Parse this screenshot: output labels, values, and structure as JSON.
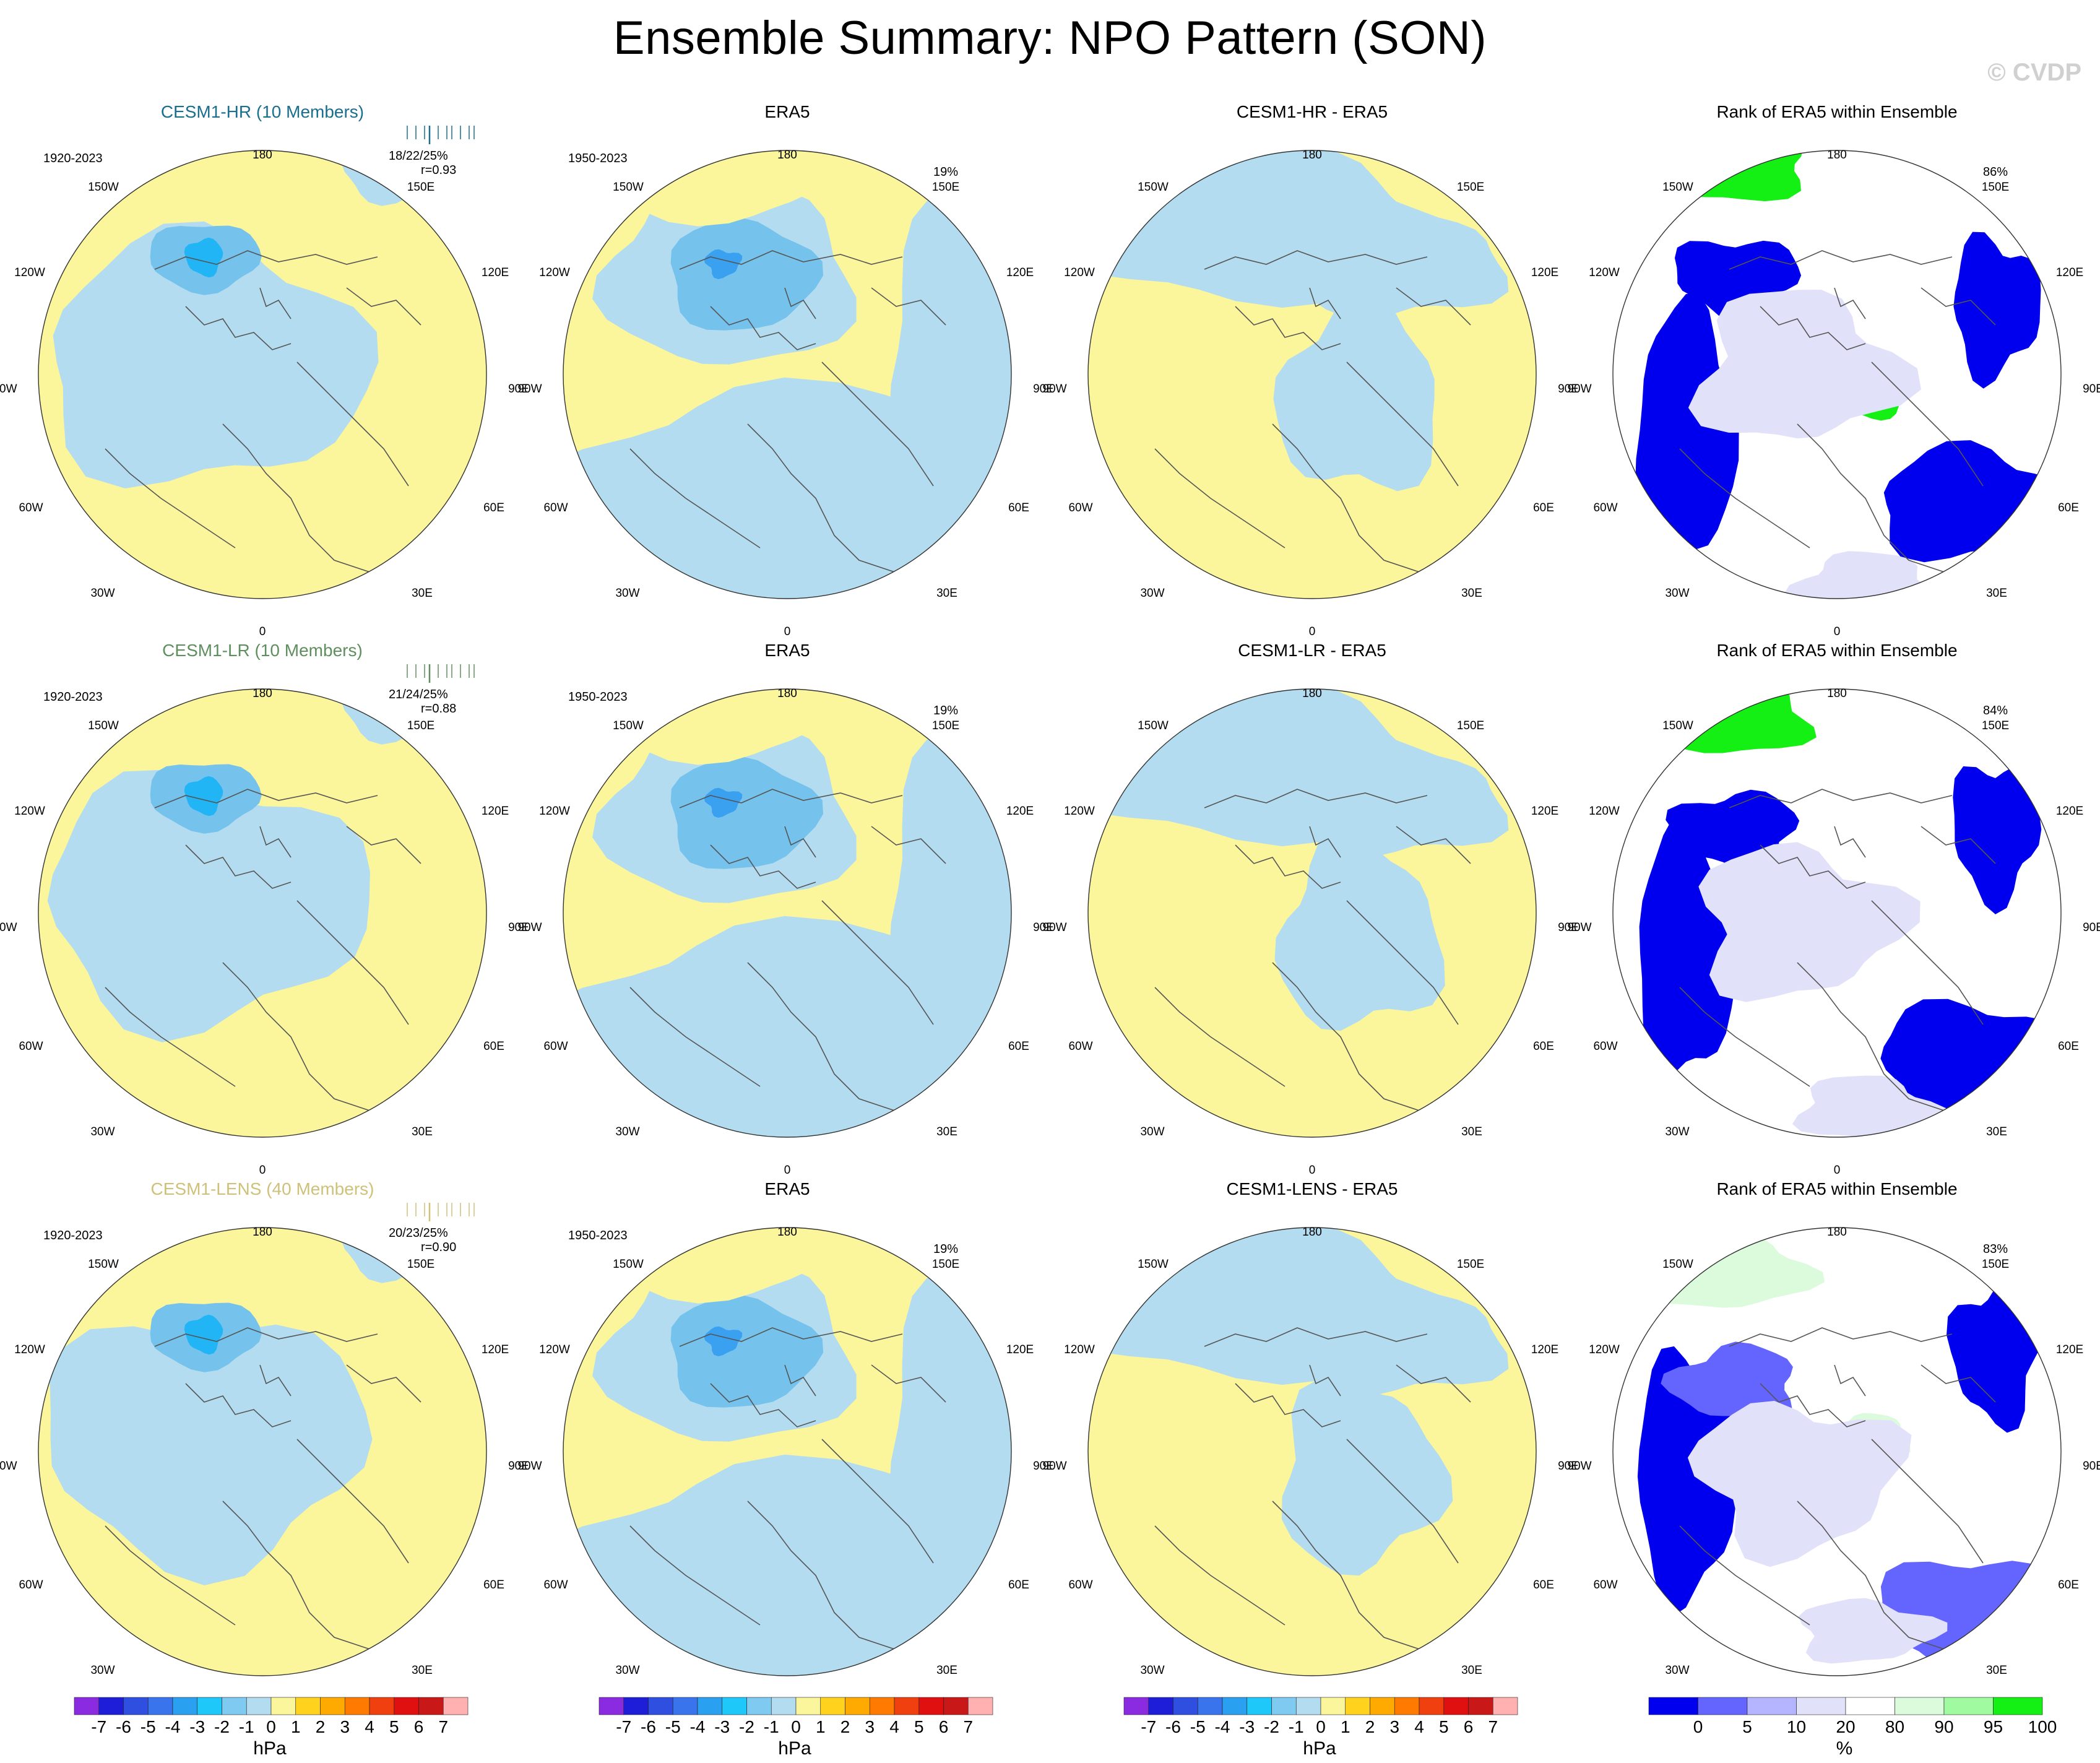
{
  "title": "Ensemble Summary: NPO Pattern (SON)",
  "watermark": "© CVDP",
  "colors": {
    "pos1": "#fbf59b",
    "neg1": "#b3dcf0",
    "neg2": "#75c2ec",
    "neg3": "#22b5f5",
    "neg4": "#3aa0f0",
    "land": "#555555",
    "rank0": "#0000ee",
    "rank5": "#6464ff",
    "rank10": "#b4b4ff",
    "rank20": "#e1e1fa",
    "rank80": "#ffffff",
    "rank90": "#dcfadc",
    "rank95": "#a0faa0",
    "rank100": "#14f014"
  },
  "lon_labels": {
    "top": "180",
    "bottom": "0",
    "l150": "150W",
    "r150": "150E",
    "l120": "120W",
    "r120": "120E",
    "l90": "90W",
    "r90": "90E",
    "l60": "60W",
    "r60": "60E",
    "l30": "30W",
    "r30": "30E"
  },
  "rows": [
    {
      "model": {
        "title": "CESM1-HR (10 Members)",
        "title_color": "#1a6e8e",
        "years": "1920-2023",
        "stat_pct": "18/22/25%",
        "stat_r": "r=0.93"
      },
      "obs": {
        "title": "ERA5",
        "years": "1950-2023",
        "pct": "19%"
      },
      "diff": {
        "title": "CESM1-HR - ERA5"
      },
      "rank": {
        "title": "Rank of ERA5 within Ensemble",
        "pct": "86%"
      }
    },
    {
      "model": {
        "title": "CESM1-LR (10 Members)",
        "title_color": "#5f8f5f",
        "years": "1920-2023",
        "stat_pct": "21/24/25%",
        "stat_r": "r=0.88"
      },
      "obs": {
        "title": "ERA5",
        "years": "1950-2023",
        "pct": "19%"
      },
      "diff": {
        "title": "CESM1-LR - ERA5"
      },
      "rank": {
        "title": "Rank of ERA5 within Ensemble",
        "pct": "84%"
      }
    },
    {
      "model": {
        "title": "CESM1-LENS (40 Members)",
        "title_color": "#cfc07a",
        "years": "1920-2023",
        "stat_pct": "20/23/25%",
        "stat_r": "r=0.90"
      },
      "obs": {
        "title": "ERA5",
        "years": "1950-2023",
        "pct": "19%"
      },
      "diff": {
        "title": "CESM1-LENS - ERA5"
      },
      "rank": {
        "title": "Rank of ERA5 within Ensemble",
        "pct": "83%"
      }
    }
  ],
  "colorbar_hpa": {
    "labels": [
      "-7",
      "-6",
      "-5",
      "-4",
      "-3",
      "-2",
      "-1",
      "0",
      "1",
      "2",
      "3",
      "4",
      "5",
      "6",
      "7"
    ],
    "colors": [
      "#8a2be2",
      "#1e1ed8",
      "#2f4fe0",
      "#3a74ec",
      "#2aa0f0",
      "#1ec8f8",
      "#7ecaf0",
      "#b3dcf0",
      "#fbf59b",
      "#ffd21e",
      "#ffaa00",
      "#ff7a00",
      "#f04010",
      "#e01010",
      "#c81818",
      "#ffb0b0"
    ],
    "units": "hPa"
  },
  "colorbar_pct": {
    "labels": [
      "0",
      "5",
      "10",
      "20",
      "80",
      "90",
      "95",
      "100"
    ],
    "colors": [
      "#0000ee",
      "#6464ff",
      "#b4b4ff",
      "#e1e1fa",
      "#ffffff",
      "#dcfadc",
      "#a0faa0",
      "#14f014"
    ],
    "units": "%"
  }
}
